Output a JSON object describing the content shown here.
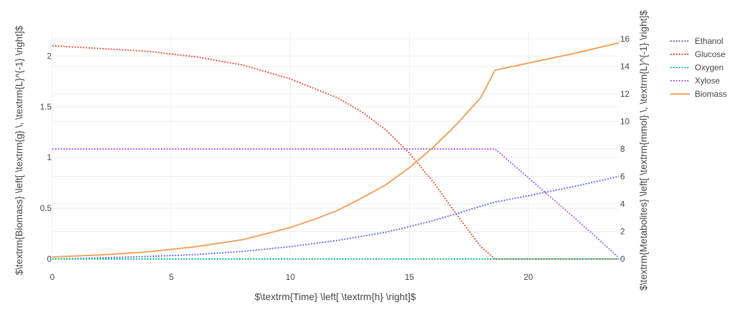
{
  "chart_data": {
    "type": "line",
    "title": "",
    "xlabel": "$\\textrm{Time} \\left[ \\textrm{h} \\right]$",
    "ylabel_left": "$\\textrm{Biomass} \\left[ \\textrm{g} \\, \\textrm{L}^{-1} \\right]$",
    "ylabel_right": "$\\textrm{Metabolites} \\left[ \\textrm{mmol} \\, \\textrm{L}^{-1} \\right]$",
    "xlim": [
      0,
      23.8
    ],
    "ylim_left": [
      0,
      2.25
    ],
    "ylim_right": [
      0,
      16.6
    ],
    "x_ticks": [
      0,
      5,
      10,
      15,
      20
    ],
    "y_ticks_left": [
      0,
      0.5,
      1,
      1.5,
      2
    ],
    "y_ticks_right": [
      0,
      2,
      4,
      6,
      8,
      10,
      12,
      14,
      16
    ],
    "legend_position": "right",
    "grid": true,
    "series": [
      {
        "name": "Ethanol",
        "axis": "right",
        "color": "#636efa",
        "dash": "dot",
        "x": [
          0,
          2,
          4,
          6,
          8,
          10,
          12,
          14,
          15,
          16,
          17,
          18.5,
          20,
          22,
          23.8
        ],
        "y": [
          0,
          0.08,
          0.18,
          0.32,
          0.55,
          0.9,
          1.35,
          1.95,
          2.35,
          2.8,
          3.3,
          4.1,
          4.6,
          5.3,
          6.0
        ]
      },
      {
        "name": "Glucose",
        "axis": "right",
        "color": "#ef553b",
        "dash": "dot",
        "x": [
          0,
          2,
          4,
          6,
          8,
          10,
          12,
          13,
          14,
          15,
          16,
          17,
          18,
          18.6,
          20,
          22,
          23.8
        ],
        "y": [
          15.5,
          15.3,
          15.1,
          14.7,
          14.1,
          13.1,
          11.7,
          10.7,
          9.4,
          7.7,
          5.6,
          3.2,
          0.9,
          0.0,
          0.0,
          0.0,
          0.0
        ]
      },
      {
        "name": "Oxygen",
        "axis": "right",
        "color": "#00cc96",
        "dash": "dot",
        "x": [
          0,
          23.8
        ],
        "y": [
          0.0,
          0.0
        ]
      },
      {
        "name": "Xylose",
        "axis": "right",
        "color": "#ab63fa",
        "dash": "dot",
        "x": [
          0,
          10,
          18.6,
          20,
          22,
          23.8
        ],
        "y": [
          8.0,
          8.0,
          8.0,
          5.9,
          2.9,
          0.1
        ]
      },
      {
        "name": "Biomass",
        "axis": "left",
        "color": "#fecb52",
        "stroke": "#f4a25d",
        "dash": "solid",
        "x": [
          0,
          2,
          4,
          6,
          8,
          10,
          11,
          12,
          13,
          14,
          15,
          16,
          17,
          18,
          18.6,
          20,
          22,
          23.8
        ],
        "y": [
          0.02,
          0.04,
          0.07,
          0.12,
          0.19,
          0.31,
          0.39,
          0.48,
          0.6,
          0.73,
          0.9,
          1.1,
          1.33,
          1.59,
          1.86,
          1.93,
          2.03,
          2.13
        ]
      }
    ]
  }
}
